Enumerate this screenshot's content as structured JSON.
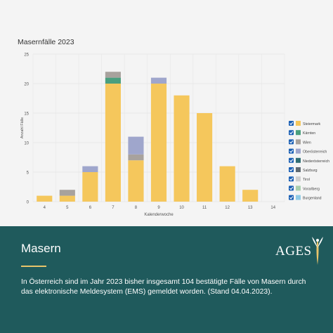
{
  "chart_data": {
    "type": "bar",
    "stacked": true,
    "title": "Masernfälle 2023",
    "xlabel": "Kalenderwoche",
    "ylabel": "Anzahl Fälle",
    "ylim": [
      0,
      25
    ],
    "yticks": [
      0,
      5,
      10,
      15,
      20,
      25
    ],
    "grid": true,
    "legend_position": "right",
    "categories": [
      "4",
      "5",
      "6",
      "7",
      "8",
      "9",
      "10",
      "11",
      "12",
      "13",
      "14"
    ],
    "series": [
      {
        "name": "Steiermark",
        "color": "#f5c75c",
        "values": [
          1,
          1,
          5,
          20,
          7,
          20,
          18,
          15,
          6,
          2,
          0
        ]
      },
      {
        "name": "Kärnten",
        "color": "#4a9f7e",
        "values": [
          0,
          0,
          0,
          1,
          0,
          0,
          0,
          0,
          0,
          0,
          0
        ]
      },
      {
        "name": "Wien",
        "color": "#a8a29d",
        "values": [
          0,
          1,
          0,
          1,
          1,
          0,
          0,
          0,
          0,
          0,
          0
        ]
      },
      {
        "name": "Oberösterreich",
        "color": "#9fa6cc",
        "values": [
          0,
          0,
          1,
          0,
          3,
          1,
          0,
          0,
          0,
          0,
          0
        ]
      },
      {
        "name": "Niederösterreich",
        "color": "#2f6e74",
        "values": [
          0,
          0,
          0,
          0,
          0,
          0,
          0,
          0,
          0,
          0,
          0
        ]
      },
      {
        "name": "Salzburg",
        "color": "#5f6a72",
        "values": [
          0,
          0,
          0,
          0,
          0,
          0,
          0,
          0,
          0,
          0,
          0
        ]
      },
      {
        "name": "Tirol",
        "color": "#cfcfcf",
        "values": [
          0,
          0,
          0,
          0,
          0,
          0,
          0,
          0,
          0,
          0,
          0
        ]
      },
      {
        "name": "Vorarlberg",
        "color": "#a9cfae",
        "values": [
          0,
          0,
          0,
          0,
          0,
          0,
          0,
          0,
          0,
          0,
          0
        ]
      },
      {
        "name": "Burgenland",
        "color": "#8fcbe6",
        "values": [
          0,
          0,
          0,
          0,
          0,
          0,
          0,
          0,
          0,
          0,
          0
        ]
      }
    ]
  },
  "info": {
    "title": "Masern",
    "text": "In Österreich sind im Jahr 2023 bisher insgesamt 104 bestätigte Fälle von Masern durch das elektronische Meldesystem (EMS) gemeldet worden. (Stand 04.04.2023).",
    "logo_text": "AGES",
    "accent_color": "#e9c46a",
    "panel_color": "#1f5a5c"
  }
}
